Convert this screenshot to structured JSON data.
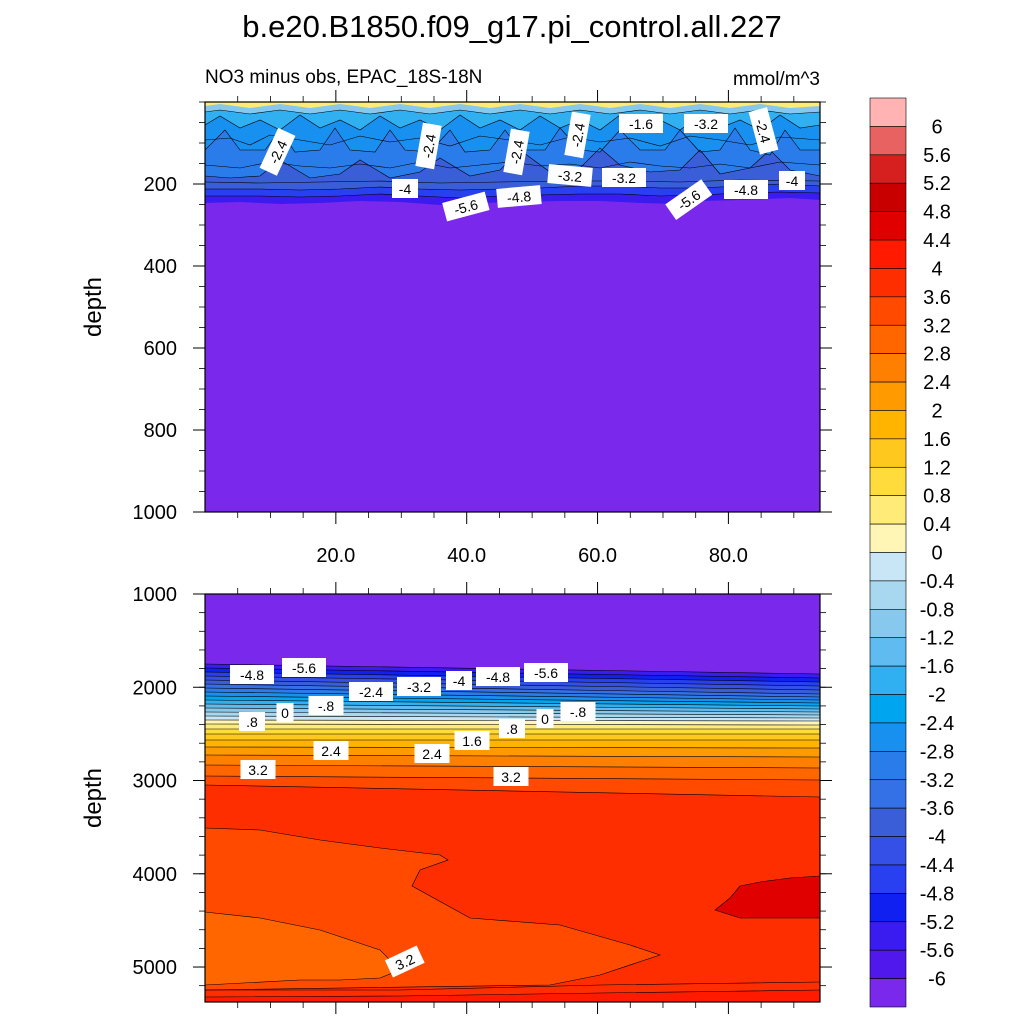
{
  "chart_data": {
    "type": "heatmap",
    "title": "b.e20.B1850.f09_g17.pi_control.all.227",
    "subtitle": "NO3 minus obs, EPAC_18S-18N",
    "units": "mmol/m^3",
    "colorbar": {
      "labels": [
        "6",
        "5.6",
        "5.2",
        "4.8",
        "4.4",
        "4",
        "3.6",
        "3.2",
        "2.8",
        "2.4",
        "2",
        "1.6",
        "1.2",
        "0.8",
        "0.4",
        "0",
        "-0.4",
        "-0.8",
        "-1.2",
        "-1.6",
        "-2",
        "-2.4",
        "-2.8",
        "-3.2",
        "-3.6",
        "-4",
        "-4.4",
        "-4.8",
        "-5.2",
        "-5.6",
        "-6"
      ],
      "colors": [
        "#FFB3B3",
        "#E86262",
        "#D62020",
        "#C80000",
        "#E00000",
        "#FF1A00",
        "#FF2E00",
        "#FF4A00",
        "#FF6600",
        "#FF7F00",
        "#FF9A00",
        "#FFB400",
        "#FFC81E",
        "#FFDC3C",
        "#FFEB78",
        "#FFF5B4",
        "#C8E6F5",
        "#A8D8F0",
        "#86C8EE",
        "#5FBBF0",
        "#30B0F0",
        "#00A5F0",
        "#1890F0",
        "#2A7CEA",
        "#3470E6",
        "#3A5ED8",
        "#3450E6",
        "#2840F0",
        "#1020F0",
        "#3A1CF0",
        "#5018EC",
        "#7A28EC"
      ],
      "position": "right"
    },
    "panels": [
      {
        "name": "upper",
        "ylabel": "depth",
        "ylim": [
          0,
          1000
        ],
        "y_inverted": true,
        "yticks": [
          "200",
          "400",
          "600",
          "800",
          "1000"
        ],
        "xlim": [
          0,
          94
        ],
        "xticks": [
          "20.0",
          "40.0",
          "60.0",
          "80.0"
        ],
        "contour_labels": [
          "-2.4",
          "-2.4",
          "-2.4",
          "-2.4",
          "-1.6",
          "-3.2",
          "-2.4",
          "-4",
          "-5.6",
          "-4.8",
          "-3.2",
          "-3.2",
          "-5.6",
          "-4.8",
          "-4"
        ]
      },
      {
        "name": "lower",
        "ylabel": "depth",
        "ylim": [
          1000,
          5375
        ],
        "y_inverted": true,
        "yticks": [
          "1000",
          "2000",
          "3000",
          "4000",
          "5000"
        ],
        "xlim": [
          0,
          94
        ],
        "contour_labels": [
          "-4.8",
          "-5.6",
          "-2.4",
          "-3.2",
          "-4",
          "-4.8",
          "-5.6",
          "0",
          "-.8",
          "-.8",
          "0",
          ".8",
          ".8",
          "1.6",
          "2.4",
          "2.4",
          "3.2",
          "3.2",
          "3.2"
        ]
      }
    ]
  }
}
